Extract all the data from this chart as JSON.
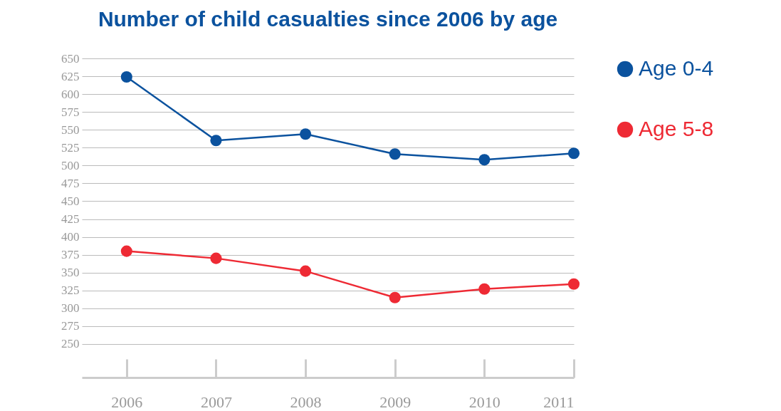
{
  "chart_data": {
    "type": "line",
    "title": "Number of child casualties since 2006 by age",
    "x": [
      2006,
      2007,
      2008,
      2009,
      2010,
      2011
    ],
    "xlim": [
      2005.5,
      2011
    ],
    "xticks": [
      2006,
      2007,
      2008,
      2009,
      2010,
      2011
    ],
    "ylim": [
      203,
      650
    ],
    "yticks": [
      250,
      275,
      300,
      325,
      350,
      375,
      400,
      425,
      450,
      475,
      500,
      525,
      550,
      575,
      600,
      625,
      650
    ],
    "series": [
      {
        "name": "Age 0-4",
        "color": "#0b529e",
        "values": [
          624,
          535,
          544,
          516,
          508,
          517
        ]
      },
      {
        "name": "Age 5-8",
        "color": "#ee2a34",
        "values": [
          380,
          370,
          352,
          315,
          327,
          334
        ]
      }
    ],
    "grid": "y",
    "legend": "right",
    "marker": "circle",
    "line_style": "solid"
  }
}
